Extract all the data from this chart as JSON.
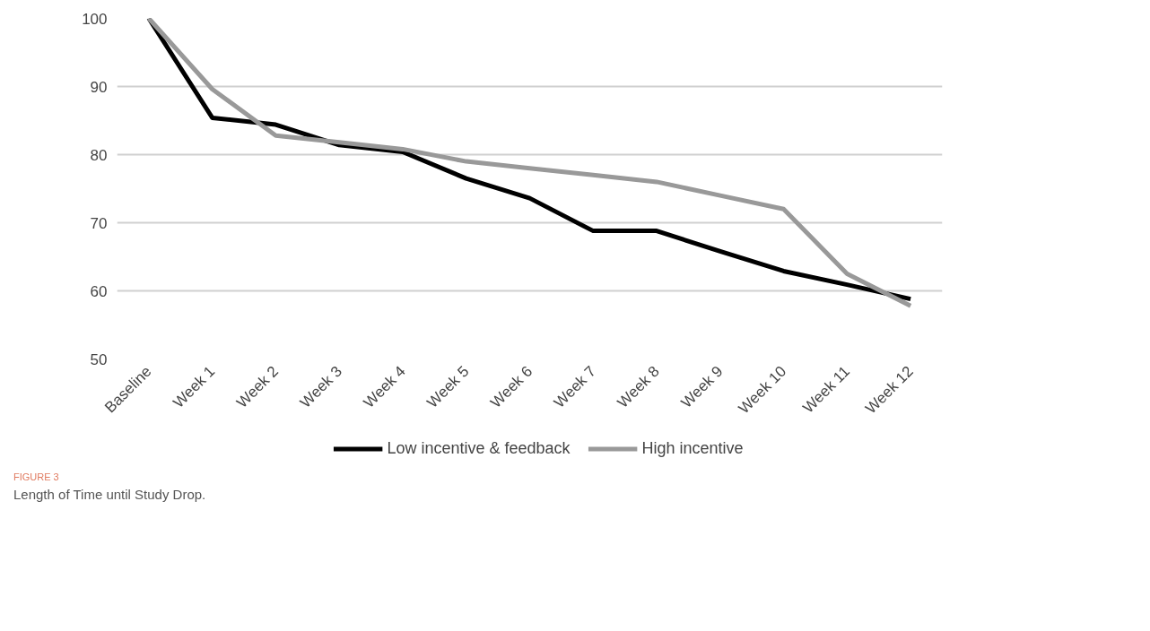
{
  "chart_data": {
    "type": "line",
    "title": "FIGURE 3",
    "subtitle": "Length of Time until Study Drop.",
    "categories": [
      "Baseline",
      "Week 1",
      "Week 2",
      "Week 3",
      "Week 4",
      "Week 5",
      "Week 6",
      "Week 7",
      "Week 8",
      "Week 9",
      "Week 10",
      "Week 11",
      "Week 12"
    ],
    "series": [
      {
        "name": "Low incentive & feedback",
        "color": "#000000",
        "values": [
          100,
          85.4,
          84.4,
          81.4,
          80.4,
          76.5,
          73.6,
          68.8,
          68.8,
          65.8,
          62.9,
          60.9,
          58.8
        ]
      },
      {
        "name": "High incentive",
        "color": "#999999",
        "values": [
          100,
          89.6,
          82.8,
          81.8,
          80.8,
          79,
          78,
          77,
          76,
          74,
          72,
          62.5,
          57.8
        ]
      }
    ],
    "ylim": [
      50,
      100
    ],
    "yticks": [
      50,
      60,
      70,
      80,
      90,
      100
    ],
    "grid": "y",
    "legend": "bottom",
    "marker": "none",
    "line_style": "solid"
  }
}
